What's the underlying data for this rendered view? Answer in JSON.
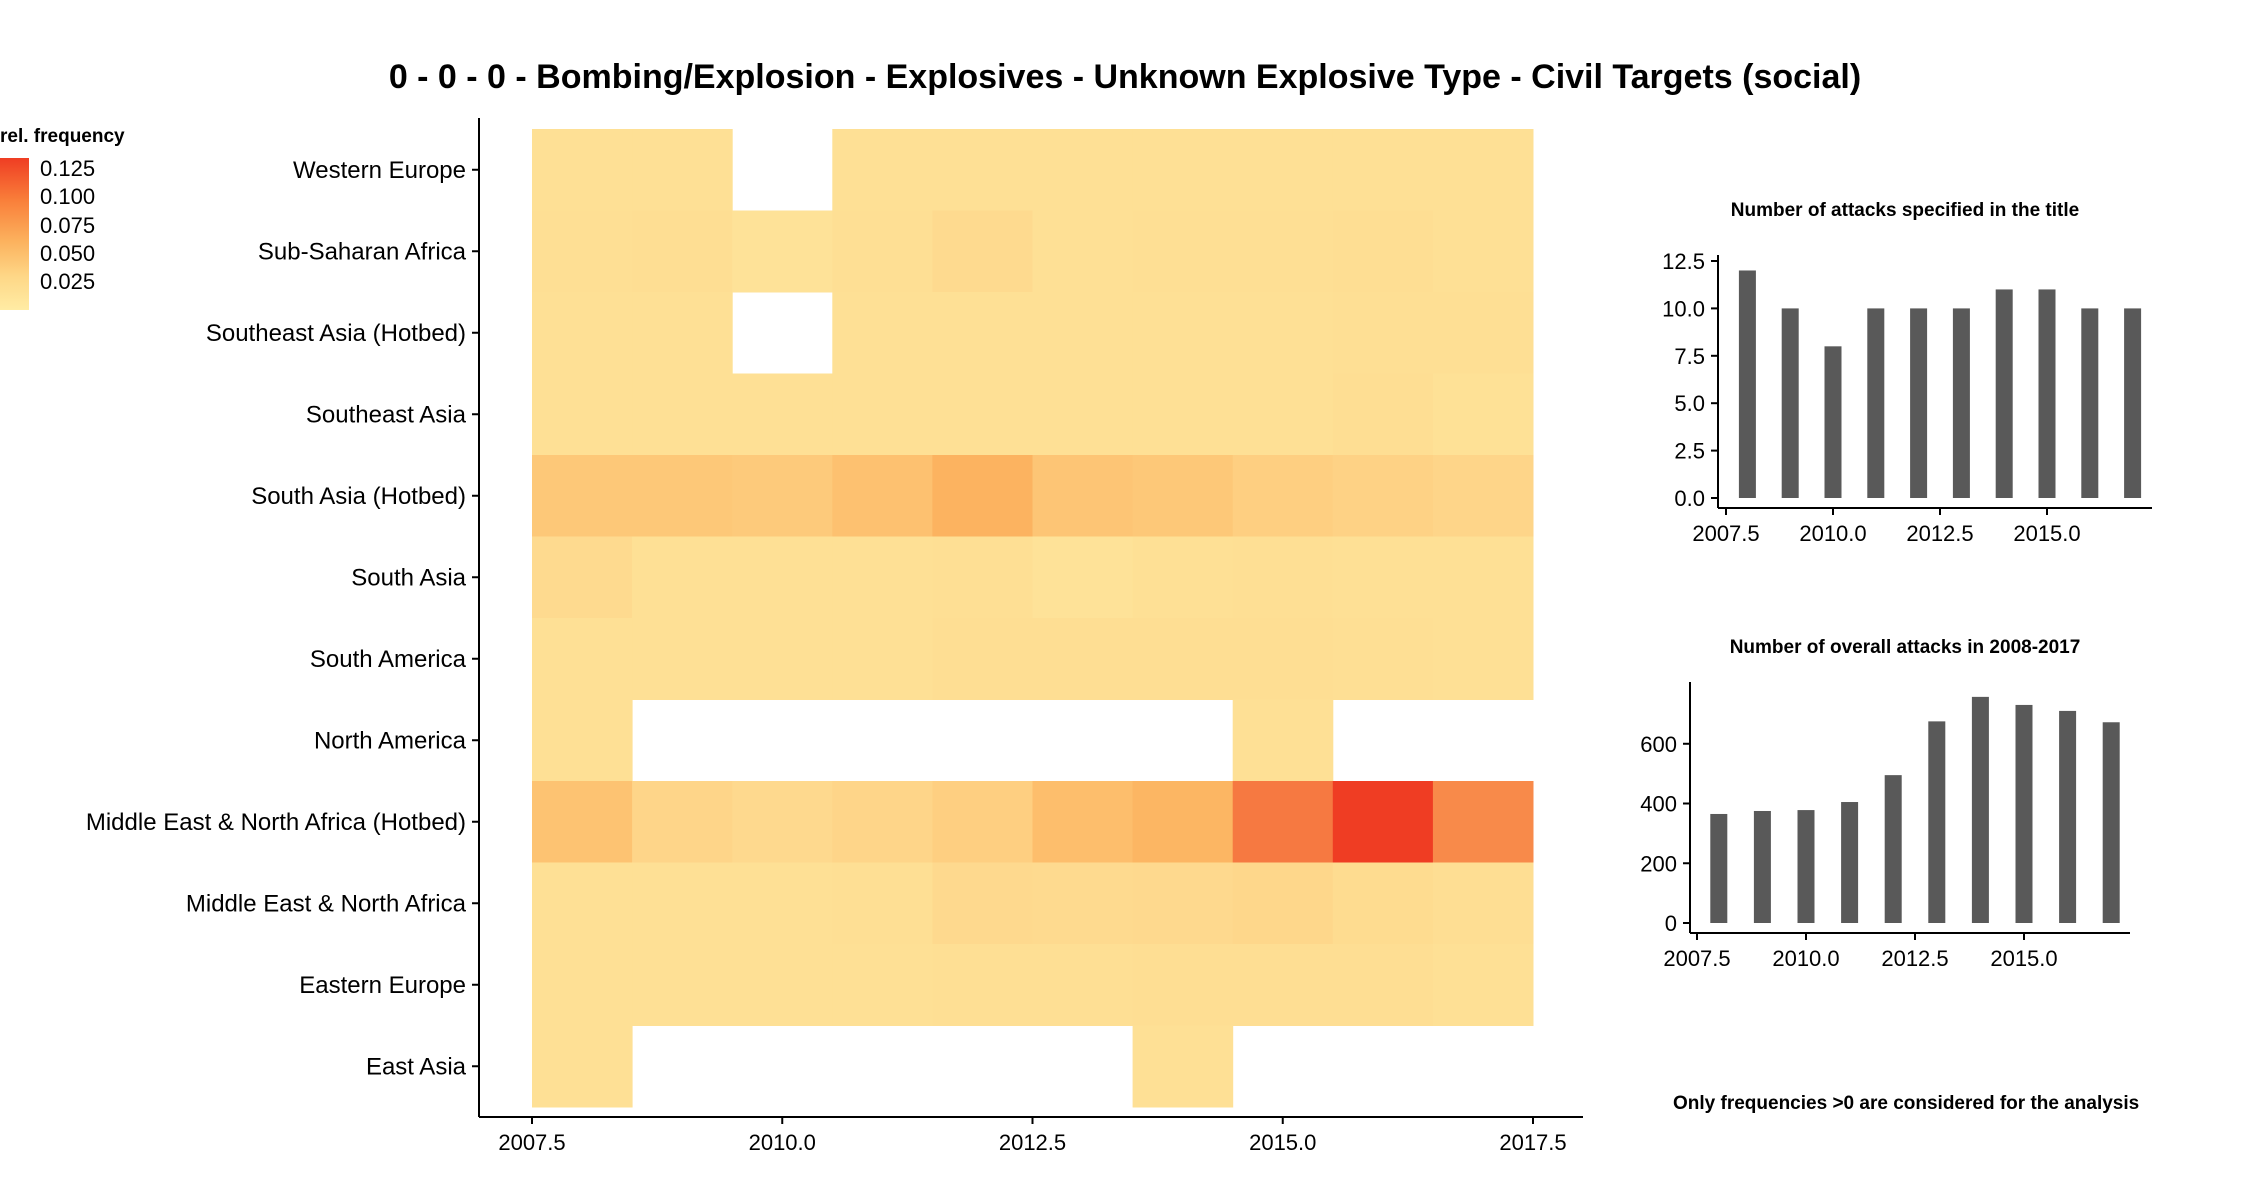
{
  "title": "0 - 0 - 0 - Bombing/Explosion - Explosives - Unknown Explosive Type - Civil Targets (social)",
  "legend": {
    "title": "rel. frequency",
    "ticks": [
      "0.125",
      "0.100",
      "0.075",
      "0.050",
      "0.025"
    ],
    "tick_values": [
      0.125,
      0.1,
      0.075,
      0.05,
      0.025
    ]
  },
  "note": "Only frequencies >0 are considered for the analysis",
  "colors": {
    "low": "#ffeca4",
    "mid": "#fcb25e",
    "high": "#ef3d23",
    "bar": "#595959"
  },
  "chart_data": [
    {
      "type": "heatmap",
      "title": "0 - 0 - 0 - Bombing/Explosion - Explosives - Unknown Explosive Type - Civil Targets (social)",
      "x": [
        2008,
        2009,
        2010,
        2011,
        2012,
        2013,
        2014,
        2015,
        2016,
        2017
      ],
      "x_ticks": [
        "2007.5",
        "2010.0",
        "2012.5",
        "2015.0",
        "2017.5"
      ],
      "x_tick_values": [
        2007.5,
        2010.0,
        2012.5,
        2015.0,
        2017.5
      ],
      "xlim": [
        2007.5,
        2017.5
      ],
      "y": [
        "Western Europe",
        "Sub-Saharan Africa",
        "Southeast Asia (Hotbed)",
        "Southeast Asia",
        "South Asia (Hotbed)",
        "South Asia",
        "South America",
        "North America",
        "Middle East & North Africa (Hotbed)",
        "Middle East & North Africa",
        "Eastern Europe",
        "East Asia"
      ],
      "values": [
        [
          0.012,
          0.012,
          null,
          0.012,
          0.012,
          0.012,
          0.012,
          0.012,
          0.012,
          0.012
        ],
        [
          0.013,
          0.014,
          0.01,
          0.013,
          0.017,
          0.012,
          0.013,
          0.013,
          0.014,
          0.012
        ],
        [
          0.012,
          0.012,
          null,
          0.012,
          0.012,
          0.012,
          0.012,
          0.012,
          0.013,
          0.013
        ],
        [
          0.012,
          0.012,
          0.012,
          0.012,
          0.012,
          0.012,
          0.012,
          0.012,
          0.014,
          0.011
        ],
        [
          0.035,
          0.035,
          0.033,
          0.042,
          0.055,
          0.038,
          0.035,
          0.028,
          0.025,
          0.022
        ],
        [
          0.017,
          0.012,
          0.012,
          0.012,
          0.013,
          0.01,
          0.012,
          0.013,
          0.012,
          0.012
        ],
        [
          0.012,
          0.012,
          0.012,
          0.012,
          0.014,
          0.014,
          0.014,
          0.014,
          0.013,
          0.012
        ],
        [
          0.012,
          null,
          null,
          null,
          null,
          null,
          null,
          0.012,
          null,
          null
        ],
        [
          0.04,
          0.022,
          0.018,
          0.022,
          0.028,
          0.045,
          0.052,
          0.09,
          0.125,
          0.08
        ],
        [
          0.012,
          0.012,
          0.012,
          0.013,
          0.018,
          0.017,
          0.018,
          0.02,
          0.016,
          0.014
        ],
        [
          0.012,
          0.012,
          0.012,
          0.012,
          0.013,
          0.013,
          0.014,
          0.014,
          0.014,
          0.012
        ],
        [
          0.012,
          null,
          null,
          null,
          null,
          null,
          0.012,
          null,
          null,
          null
        ]
      ],
      "grid": false,
      "legend_position": "top-left"
    },
    {
      "type": "bar",
      "title": "Number of attacks specified in the title",
      "x": [
        2008,
        2009,
        2010,
        2011,
        2012,
        2013,
        2014,
        2015,
        2016,
        2017
      ],
      "values": [
        12,
        10,
        8,
        10,
        10,
        10,
        11,
        11,
        10,
        10
      ],
      "x_ticks": [
        "2007.5",
        "2010.0",
        "2012.5",
        "2015.0"
      ],
      "x_tick_values": [
        2007.5,
        2010.0,
        2012.5,
        2015.0
      ],
      "y_ticks": [
        "0.0",
        "2.5",
        "5.0",
        "7.5",
        "10.0",
        "12.5"
      ],
      "y_tick_values": [
        0,
        2.5,
        5,
        7.5,
        10,
        12.5
      ],
      "xlim": [
        2007.5,
        2017.5
      ],
      "ylim": [
        0,
        12.5
      ],
      "grid": false
    },
    {
      "type": "bar",
      "title": "Number of overall attacks in 2008-2017",
      "x": [
        2008,
        2009,
        2010,
        2011,
        2012,
        2013,
        2014,
        2015,
        2016,
        2017
      ],
      "values": [
        365,
        375,
        378,
        405,
        495,
        675,
        757,
        730,
        710,
        672
      ],
      "x_ticks": [
        "2007.5",
        "2010.0",
        "2012.5",
        "2015.0"
      ],
      "x_tick_values": [
        2007.5,
        2010.0,
        2012.5,
        2015.0
      ],
      "y_ticks": [
        "0",
        "200",
        "400",
        "600"
      ],
      "y_tick_values": [
        0,
        200,
        400,
        600
      ],
      "xlim": [
        2007.5,
        2017.5
      ],
      "ylim": [
        0,
        780
      ],
      "grid": false
    }
  ]
}
